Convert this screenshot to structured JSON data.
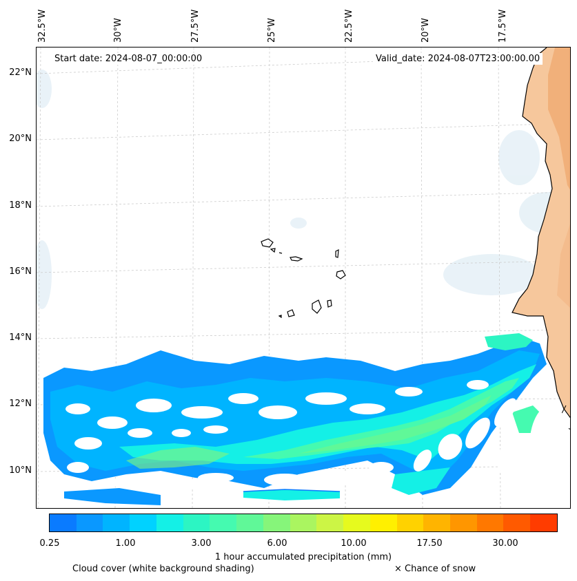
{
  "map": {
    "start_date": "Start date: 2024-08-07_00:00:00",
    "valid_date": "Valid_date: 2024-08-07T23:00:00.00",
    "lon_labels": [
      "32.5°W",
      "30°W",
      "27.5°W",
      "25°W",
      "22.5°W",
      "20°W",
      "17.5°W"
    ],
    "lat_labels": [
      "22°N",
      "20°N",
      "18°N",
      "16°N",
      "14°N",
      "12°N",
      "10°N"
    ],
    "colors": {
      "ocean": "#ffffff",
      "coastline": "#000000",
      "gridline": "#cccccc",
      "land_warm": "#f4b27a",
      "cloud_shade": "#e8f2f7"
    }
  },
  "colorbar": {
    "title": "1 hour accumulated precipitation (mm)",
    "tick_labels": [
      "0.25",
      "1.00",
      "3.00",
      "6.00",
      "10.00",
      "17.50",
      "30.00"
    ],
    "colors": [
      "#0a7bff",
      "#0a98ff",
      "#00b4ff",
      "#00d2ff",
      "#14f0e6",
      "#2cf5c3",
      "#45fab0",
      "#60f898",
      "#86f57a",
      "#aaf560",
      "#ccf545",
      "#e6fa1e",
      "#fff000",
      "#ffd200",
      "#ffb400",
      "#ff9600",
      "#ff7800",
      "#ff5a00",
      "#ff3c00"
    ]
  },
  "legend": {
    "cloud_cover": "Cloud cover (white background shading)",
    "snow": "× Chance of snow"
  }
}
